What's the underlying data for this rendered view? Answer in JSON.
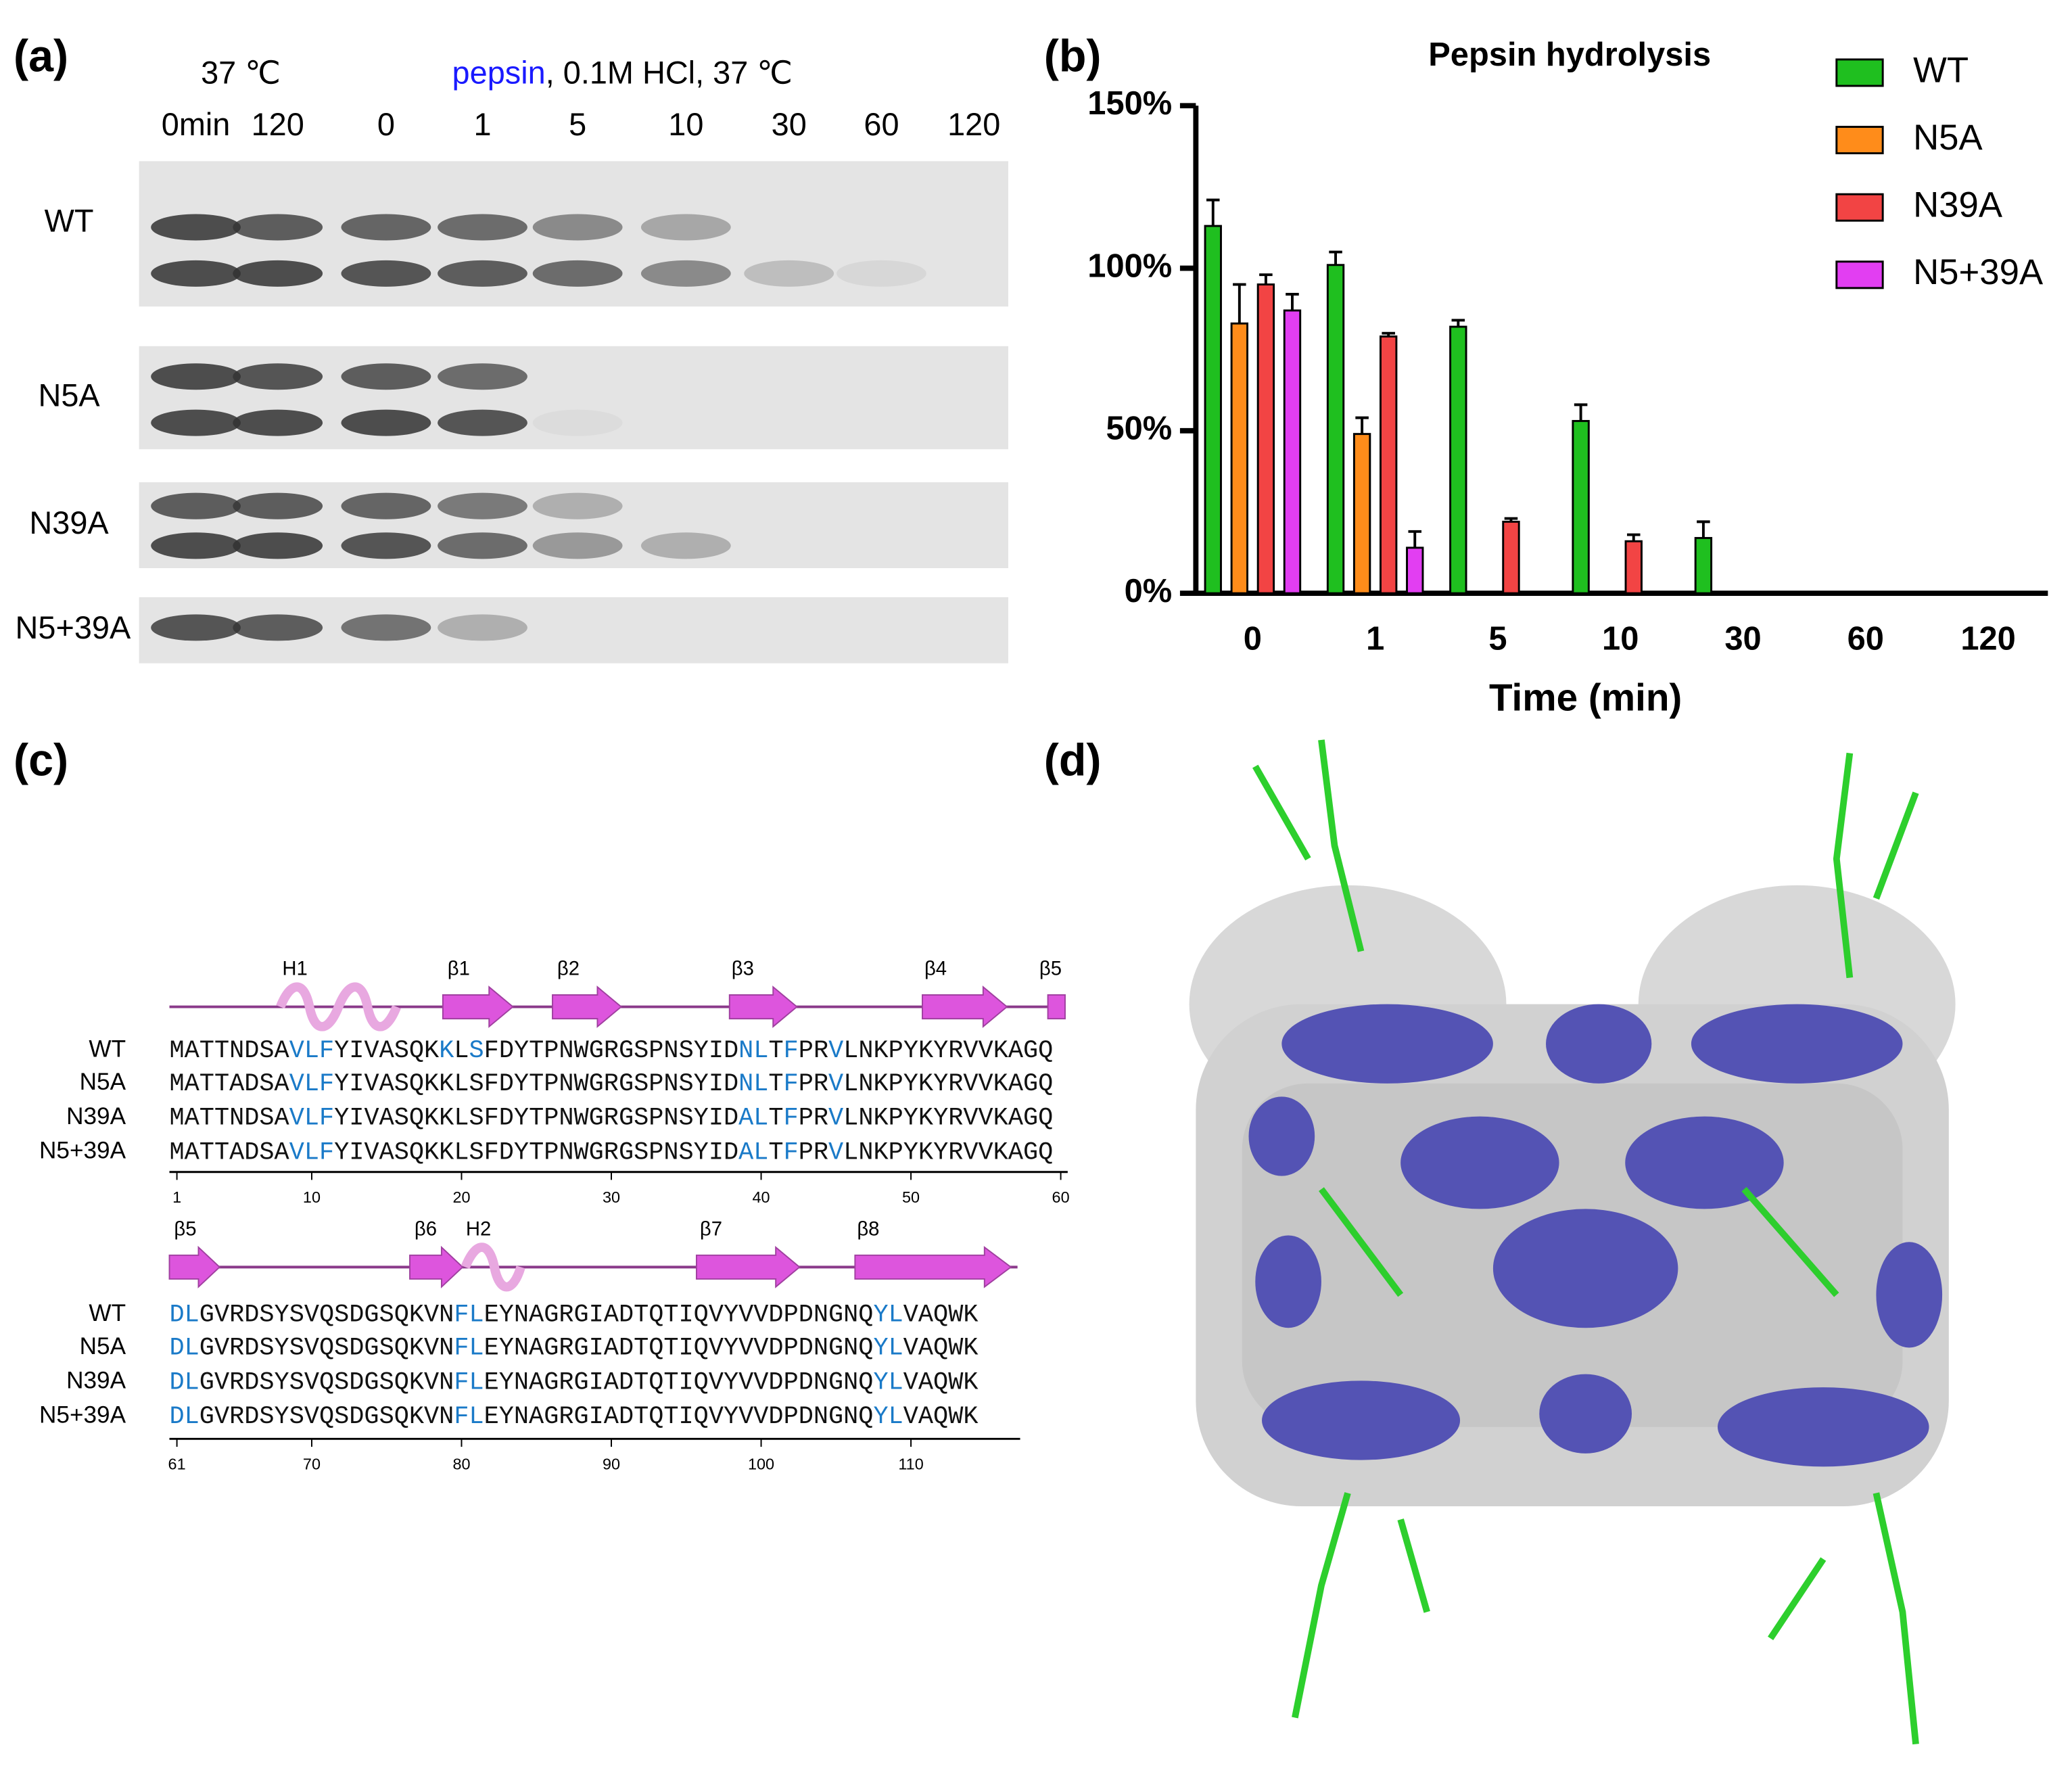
{
  "panel_a": {
    "label": "(a)",
    "control_condition": "37 ℃",
    "enzyme": "pepsin",
    "condition": ", 0.1M HCl, 37 ℃",
    "lanes": [
      "0min",
      "120",
      "0",
      "1",
      "5",
      "10",
      "30",
      "60",
      "120"
    ],
    "rows": [
      "WT",
      "N5A",
      "N39A",
      "N5+39A"
    ]
  },
  "chart_data": {
    "type": "bar",
    "panel_label": "(b)",
    "title": "Pepsin hydrolysis",
    "x_label": "Time (min)",
    "categories": [
      "0",
      "1",
      "5",
      "10",
      "30",
      "60",
      "120"
    ],
    "series": [
      {
        "name": "WT",
        "color": "#1fbf1f",
        "values": [
          113,
          101,
          82,
          53,
          17,
          0,
          0
        ],
        "errors": [
          8,
          4,
          2,
          5,
          5,
          null,
          null
        ]
      },
      {
        "name": "N5A",
        "color": "#ff8c1a",
        "values": [
          83,
          49,
          0,
          0,
          0,
          0,
          0
        ],
        "errors": [
          12,
          5,
          null,
          null,
          null,
          null,
          null
        ]
      },
      {
        "name": "N39A",
        "color": "#f24444",
        "values": [
          95,
          79,
          22,
          16,
          0,
          0,
          0
        ],
        "errors": [
          3,
          1,
          1,
          2,
          null,
          null,
          null
        ]
      },
      {
        "name": "N5+39A",
        "color": "#e23ef2",
        "values": [
          87,
          14,
          0,
          0,
          0,
          0,
          0
        ],
        "errors": [
          5,
          5,
          null,
          null,
          null,
          null,
          null
        ]
      }
    ],
    "ylim": [
      0,
      150
    ],
    "yticks": [
      {
        "value": 0,
        "label": "0%"
      },
      {
        "value": 50,
        "label": "50%"
      },
      {
        "value": 100,
        "label": "100%"
      },
      {
        "value": 150,
        "label": "150%"
      }
    ],
    "grid": false,
    "legend": "top-right"
  },
  "panel_c": {
    "label": "(c)",
    "blocks": [
      {
        "structure": [
          "H1",
          "β1",
          "β2",
          "β3",
          "β4",
          "β5"
        ],
        "rows": [
          {
            "name": "WT",
            "segments": [
              {
                "text": "MATTNDSA",
                "blue": false
              },
              {
                "text": "VLF",
                "blue": true
              },
              {
                "text": "YIVASQK",
                "blue": false
              },
              {
                "text": "K",
                "blue": true
              },
              {
                "text": "L",
                "blue": false
              },
              {
                "text": "S",
                "blue": true
              },
              {
                "text": "FDYTPNWGRGSPNSYID",
                "blue": false
              },
              {
                "text": "NL",
                "blue": true
              },
              {
                "text": "T",
                "blue": false
              },
              {
                "text": "F",
                "blue": true
              },
              {
                "text": "PR",
                "blue": false
              },
              {
                "text": "V",
                "blue": true
              },
              {
                "text": "LNKPYKYRVVKAGQ",
                "blue": false
              }
            ]
          },
          {
            "name": "N5A",
            "segments": [
              {
                "text": "MATTADSA",
                "blue": false
              },
              {
                "text": "VLF",
                "blue": true
              },
              {
                "text": "YIVASQKKLSFDYTPNWGRGSPNSYID",
                "blue": false
              },
              {
                "text": "NL",
                "blue": true
              },
              {
                "text": "T",
                "blue": false
              },
              {
                "text": "F",
                "blue": true
              },
              {
                "text": "PR",
                "blue": false
              },
              {
                "text": "V",
                "blue": true
              },
              {
                "text": "LNKPYKYRVVKAGQ",
                "blue": false
              }
            ]
          },
          {
            "name": "N39A",
            "segments": [
              {
                "text": "MATTNDSA",
                "blue": false
              },
              {
                "text": "VLF",
                "blue": true
              },
              {
                "text": "YIVASQKKLSFDYTPNWGRGSPNSYID",
                "blue": false
              },
              {
                "text": "AL",
                "blue": true
              },
              {
                "text": "T",
                "blue": false
              },
              {
                "text": "F",
                "blue": true
              },
              {
                "text": "PR",
                "blue": false
              },
              {
                "text": "V",
                "blue": true
              },
              {
                "text": "LNKPYKYRVVKAGQ",
                "blue": false
              }
            ]
          },
          {
            "name": "N5+39A",
            "segments": [
              {
                "text": "MATTADSA",
                "blue": false
              },
              {
                "text": "VLF",
                "blue": true
              },
              {
                "text": "YIVASQKKLSFDYTPNWGRGSPNSYID",
                "blue": false
              },
              {
                "text": "AL",
                "blue": true
              },
              {
                "text": "T",
                "blue": false
              },
              {
                "text": "F",
                "blue": true
              },
              {
                "text": "PR",
                "blue": false
              },
              {
                "text": "V",
                "blue": true
              },
              {
                "text": "LNKPYKYRVVKAGQ",
                "blue": false
              }
            ]
          }
        ],
        "ruler": [
          1,
          10,
          20,
          30,
          40,
          50,
          60
        ]
      },
      {
        "structure": [
          "β5",
          "β6",
          "H2",
          "β7",
          "β8"
        ],
        "rows": [
          {
            "name": "WT",
            "segments": [
              {
                "text": "DL",
                "blue": true
              },
              {
                "text": "GVRDSYSVQSDGSQKVN",
                "blue": false
              },
              {
                "text": "FL",
                "blue": true
              },
              {
                "text": "EYNAGRGIADTQTIQVYVVDPDNGNQ",
                "blue": false
              },
              {
                "text": "YL",
                "blue": true
              },
              {
                "text": "VAQWK",
                "blue": false
              }
            ]
          },
          {
            "name": "N5A",
            "segments": [
              {
                "text": "DL",
                "blue": true
              },
              {
                "text": "GVRDSYSVQSDGSQKVN",
                "blue": false
              },
              {
                "text": "FL",
                "blue": true
              },
              {
                "text": "EYNAGRGIADTQTIQVYVVDPDNGNQ",
                "blue": false
              },
              {
                "text": "YL",
                "blue": true
              },
              {
                "text": "VAQWK",
                "blue": false
              }
            ]
          },
          {
            "name": "N39A",
            "segments": [
              {
                "text": "DL",
                "blue": true
              },
              {
                "text": "GVRDSYSVQSDGSQKVN",
                "blue": false
              },
              {
                "text": "FL",
                "blue": true
              },
              {
                "text": "EYNAGRGIADTQTIQVYVVDPDNGNQ",
                "blue": false
              },
              {
                "text": "YL",
                "blue": true
              },
              {
                "text": "VAQWK",
                "blue": false
              }
            ]
          },
          {
            "name": "N5+39A",
            "segments": [
              {
                "text": "DL",
                "blue": true
              },
              {
                "text": "GVRDSYSVQSDGSQKVN",
                "blue": false
              },
              {
                "text": "FL",
                "blue": true
              },
              {
                "text": "EYNAGRGIADTQTIQVYVVDPDNGNQ",
                "blue": false
              },
              {
                "text": "YL",
                "blue": true
              },
              {
                "text": "VAQWK",
                "blue": false
              }
            ]
          }
        ],
        "ruler": [
          61,
          70,
          80,
          90,
          100,
          110
        ]
      }
    ]
  },
  "panel_d": {
    "label": "(d)"
  }
}
